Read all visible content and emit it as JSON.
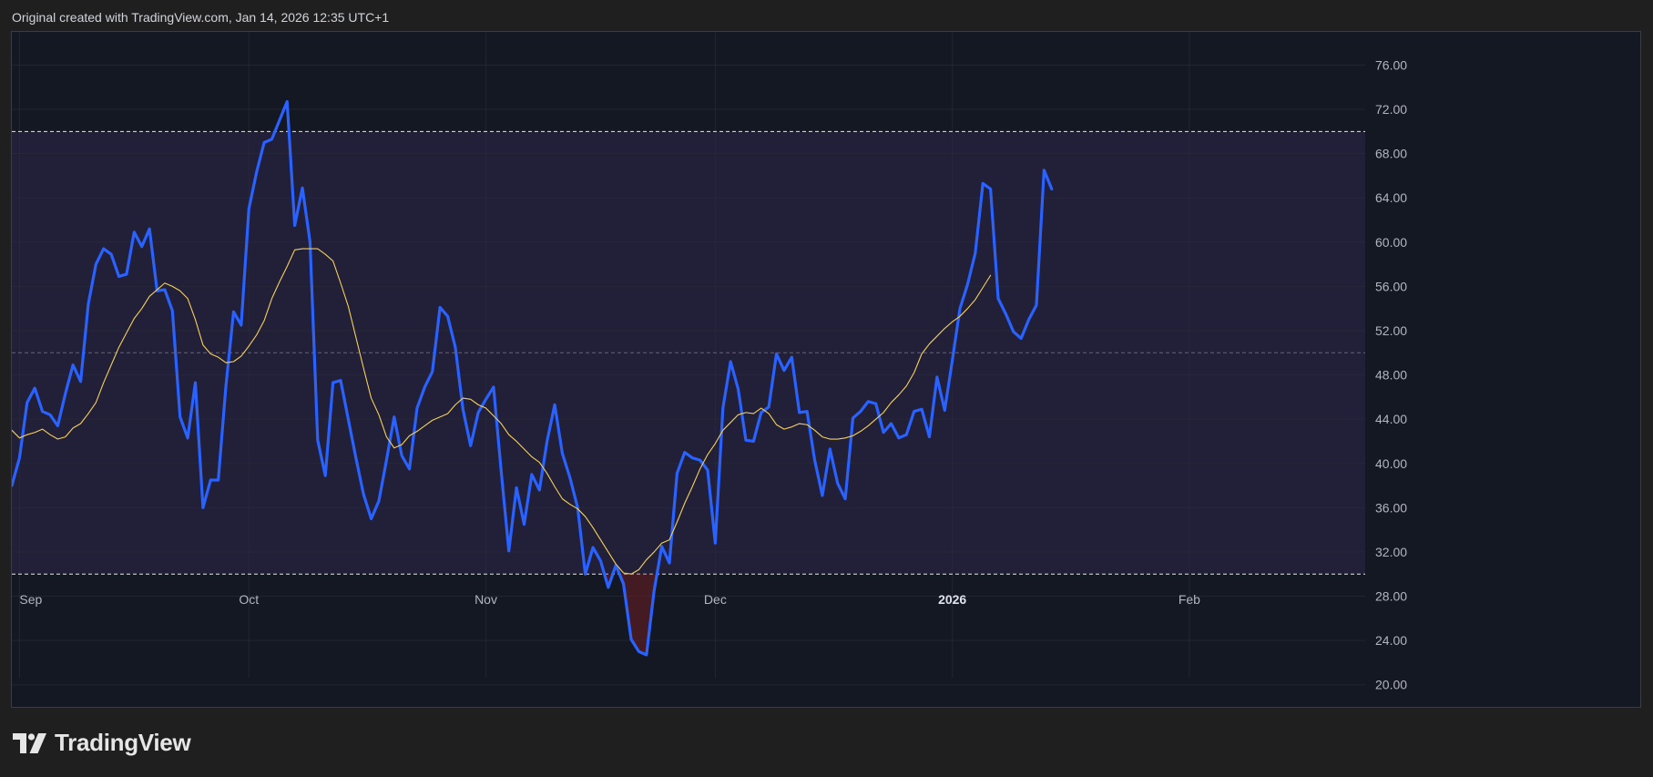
{
  "header": {
    "text": "Original created with TradingView.com, Jan 14, 2026 12:35 UTC+1"
  },
  "brand": {
    "name": "TradingView",
    "icon": "tradingview-logo-icon"
  },
  "colors": {
    "background": "#1f1f1f",
    "pane": "#141823",
    "band_fill": "#221f38",
    "rsi_line": "#2962ff",
    "ma_line": "#f5d15a",
    "level_line": "#e8e8e8",
    "oversold_fill": "#6b1f24",
    "axis_text": "#b2b5be"
  },
  "chart_data": {
    "type": "line",
    "title": "",
    "xlabel": "",
    "ylabel": "",
    "ylim": [
      18,
      79
    ],
    "y_ticks": [
      "76.00",
      "72.00",
      "68.00",
      "64.00",
      "60.00",
      "56.00",
      "52.00",
      "48.00",
      "44.00",
      "40.00",
      "36.00",
      "32.00",
      "28.00",
      "24.00",
      "20.00"
    ],
    "y_tick_values": [
      76,
      72,
      68,
      64,
      60,
      56,
      52,
      48,
      44,
      40,
      36,
      32,
      28,
      24,
      20
    ],
    "x_range": [
      "2025-08-31",
      "2026-02-24"
    ],
    "x_ticks": [
      {
        "label": "Sep",
        "date": "2025-09-01",
        "bold": false
      },
      {
        "label": "Oct",
        "date": "2025-10-01",
        "bold": false
      },
      {
        "label": "Nov",
        "date": "2025-11-01",
        "bold": false
      },
      {
        "label": "Dec",
        "date": "2025-12-01",
        "bold": false
      },
      {
        "label": "2026",
        "date": "2026-01-01",
        "bold": true
      },
      {
        "label": "Feb",
        "date": "2026-02-01",
        "bold": false
      }
    ],
    "levels": {
      "upper": 70,
      "middle": 50,
      "lower": 30
    },
    "grid": true,
    "series": [
      {
        "values": [
          [
            "2025-08-31",
            38.0
          ],
          [
            "2025-09-01",
            40.5
          ],
          [
            "2025-09-02",
            45.5
          ],
          [
            "2025-09-03",
            46.8
          ],
          [
            "2025-09-04",
            44.7
          ],
          [
            "2025-09-05",
            44.4
          ],
          [
            "2025-09-06",
            43.4
          ],
          [
            "2025-09-07",
            46.3
          ],
          [
            "2025-09-08",
            48.9
          ],
          [
            "2025-09-09",
            47.4
          ],
          [
            "2025-09-10",
            54.4
          ],
          [
            "2025-09-11",
            58.0
          ],
          [
            "2025-09-12",
            59.4
          ],
          [
            "2025-09-13",
            58.9
          ],
          [
            "2025-09-14",
            56.9
          ],
          [
            "2025-09-15",
            57.1
          ],
          [
            "2025-09-16",
            60.9
          ],
          [
            "2025-09-17",
            59.6
          ],
          [
            "2025-09-18",
            61.2
          ],
          [
            "2025-09-19",
            55.6
          ],
          [
            "2025-09-20",
            55.7
          ],
          [
            "2025-09-21",
            53.8
          ],
          [
            "2025-09-22",
            44.2
          ],
          [
            "2025-09-23",
            42.3
          ],
          [
            "2025-09-24",
            47.3
          ],
          [
            "2025-09-25",
            36.0
          ],
          [
            "2025-09-26",
            38.5
          ],
          [
            "2025-09-27",
            38.5
          ],
          [
            "2025-09-28",
            47.0
          ],
          [
            "2025-09-29",
            53.7
          ],
          [
            "2025-09-30",
            52.5
          ],
          [
            "2025-10-01",
            63.0
          ],
          [
            "2025-10-02",
            66.3
          ],
          [
            "2025-10-03",
            69.0
          ],
          [
            "2025-10-04",
            69.3
          ],
          [
            "2025-10-05",
            71.0
          ],
          [
            "2025-10-06",
            72.7
          ],
          [
            "2025-10-07",
            61.5
          ],
          [
            "2025-10-08",
            64.9
          ],
          [
            "2025-10-09",
            60.0
          ],
          [
            "2025-10-10",
            42.1
          ],
          [
            "2025-10-11",
            38.9
          ],
          [
            "2025-10-12",
            47.3
          ],
          [
            "2025-10-13",
            47.5
          ],
          [
            "2025-10-14",
            44.0
          ],
          [
            "2025-10-15",
            40.5
          ],
          [
            "2025-10-16",
            37.2
          ],
          [
            "2025-10-17",
            35.0
          ],
          [
            "2025-10-18",
            36.6
          ],
          [
            "2025-10-19",
            40.3
          ],
          [
            "2025-10-20",
            44.2
          ],
          [
            "2025-10-21",
            40.7
          ],
          [
            "2025-10-22",
            39.5
          ],
          [
            "2025-10-23",
            45.0
          ],
          [
            "2025-10-24",
            46.9
          ],
          [
            "2025-10-25",
            48.3
          ],
          [
            "2025-10-26",
            54.1
          ],
          [
            "2025-10-27",
            53.3
          ],
          [
            "2025-10-28",
            50.5
          ],
          [
            "2025-10-29",
            44.9
          ],
          [
            "2025-10-30",
            41.6
          ],
          [
            "2025-10-31",
            44.6
          ],
          [
            "2025-11-01",
            45.8
          ],
          [
            "2025-11-02",
            46.9
          ],
          [
            "2025-11-03",
            39.3
          ],
          [
            "2025-11-04",
            32.1
          ],
          [
            "2025-11-05",
            37.8
          ],
          [
            "2025-11-06",
            34.5
          ],
          [
            "2025-11-07",
            39.0
          ],
          [
            "2025-11-08",
            37.6
          ],
          [
            "2025-11-09",
            42.0
          ],
          [
            "2025-11-10",
            45.3
          ],
          [
            "2025-11-11",
            40.9
          ],
          [
            "2025-11-12",
            38.7
          ],
          [
            "2025-11-13",
            36.0
          ],
          [
            "2025-11-14",
            30.0
          ],
          [
            "2025-11-15",
            32.4
          ],
          [
            "2025-11-16",
            31.2
          ],
          [
            "2025-11-17",
            28.8
          ],
          [
            "2025-11-18",
            30.8
          ],
          [
            "2025-11-19",
            29.1
          ],
          [
            "2025-11-20",
            24.1
          ],
          [
            "2025-11-21",
            23.0
          ],
          [
            "2025-11-22",
            22.7
          ],
          [
            "2025-11-23",
            28.5
          ],
          [
            "2025-11-24",
            32.5
          ],
          [
            "2025-11-25",
            31.0
          ],
          [
            "2025-11-26",
            39.1
          ],
          [
            "2025-11-27",
            41.0
          ],
          [
            "2025-11-28",
            40.5
          ],
          [
            "2025-11-29",
            40.3
          ],
          [
            "2025-11-30",
            39.4
          ],
          [
            "2025-12-01",
            32.8
          ],
          [
            "2025-12-02",
            45.0
          ],
          [
            "2025-12-03",
            49.2
          ],
          [
            "2025-12-04",
            46.7
          ],
          [
            "2025-12-05",
            42.1
          ],
          [
            "2025-12-06",
            42.0
          ],
          [
            "2025-12-07",
            44.6
          ],
          [
            "2025-12-08",
            45.1
          ],
          [
            "2025-12-09",
            49.9
          ],
          [
            "2025-12-10",
            48.4
          ],
          [
            "2025-12-11",
            49.6
          ],
          [
            "2025-12-12",
            44.6
          ],
          [
            "2025-12-13",
            44.7
          ],
          [
            "2025-12-14",
            40.3
          ],
          [
            "2025-12-15",
            37.1
          ],
          [
            "2025-12-16",
            41.3
          ],
          [
            "2025-12-17",
            38.2
          ],
          [
            "2025-12-18",
            36.8
          ],
          [
            "2025-12-19",
            44.1
          ],
          [
            "2025-12-20",
            44.7
          ],
          [
            "2025-12-21",
            45.6
          ],
          [
            "2025-12-22",
            45.4
          ],
          [
            "2025-12-23",
            42.8
          ],
          [
            "2025-12-24",
            43.6
          ],
          [
            "2025-12-25",
            42.3
          ],
          [
            "2025-12-26",
            42.6
          ],
          [
            "2025-12-27",
            44.7
          ],
          [
            "2025-12-28",
            44.9
          ],
          [
            "2025-12-29",
            42.4
          ],
          [
            "2025-12-30",
            47.8
          ],
          [
            "2025-12-31",
            44.8
          ],
          [
            "2026-01-01",
            49.3
          ],
          [
            "2026-01-02",
            54.0
          ],
          [
            "2026-01-03",
            56.2
          ],
          [
            "2026-01-04",
            59.0
          ],
          [
            "2026-01-05",
            65.3
          ],
          [
            "2026-01-06",
            64.8
          ],
          [
            "2026-01-07",
            54.9
          ],
          [
            "2026-01-08",
            53.5
          ],
          [
            "2026-01-09",
            51.9
          ],
          [
            "2026-01-10",
            51.3
          ],
          [
            "2026-01-11",
            53.0
          ],
          [
            "2026-01-12",
            54.3
          ],
          [
            "2026-01-13",
            66.5
          ],
          [
            "2026-01-14",
            64.8
          ]
        ]
      },
      {
        "values": [
          [
            "2025-08-31",
            43.0
          ],
          [
            "2025-09-01",
            42.3
          ],
          [
            "2025-09-02",
            42.6
          ],
          [
            "2025-09-03",
            42.8
          ],
          [
            "2025-09-04",
            43.1
          ],
          [
            "2025-09-05",
            42.6
          ],
          [
            "2025-09-06",
            42.2
          ],
          [
            "2025-09-07",
            42.4
          ],
          [
            "2025-09-08",
            43.2
          ],
          [
            "2025-09-09",
            43.6
          ],
          [
            "2025-09-10",
            44.5
          ],
          [
            "2025-09-11",
            45.5
          ],
          [
            "2025-09-12",
            47.3
          ],
          [
            "2025-09-13",
            48.9
          ],
          [
            "2025-09-14",
            50.5
          ],
          [
            "2025-09-15",
            51.8
          ],
          [
            "2025-09-16",
            53.1
          ],
          [
            "2025-09-17",
            54.0
          ],
          [
            "2025-09-18",
            55.1
          ],
          [
            "2025-09-19",
            55.7
          ],
          [
            "2025-09-20",
            56.3
          ],
          [
            "2025-09-21",
            56.0
          ],
          [
            "2025-09-22",
            55.6
          ],
          [
            "2025-09-23",
            54.9
          ],
          [
            "2025-09-24",
            53.0
          ],
          [
            "2025-09-25",
            50.7
          ],
          [
            "2025-09-26",
            49.9
          ],
          [
            "2025-09-27",
            49.6
          ],
          [
            "2025-09-28",
            49.1
          ],
          [
            "2025-09-29",
            49.2
          ],
          [
            "2025-09-30",
            49.7
          ],
          [
            "2025-10-01",
            50.6
          ],
          [
            "2025-10-02",
            51.6
          ],
          [
            "2025-10-03",
            52.9
          ],
          [
            "2025-10-04",
            54.9
          ],
          [
            "2025-10-05",
            56.4
          ],
          [
            "2025-10-06",
            57.8
          ],
          [
            "2025-10-07",
            59.3
          ],
          [
            "2025-10-08",
            59.4
          ],
          [
            "2025-10-09",
            59.4
          ],
          [
            "2025-10-10",
            59.4
          ],
          [
            "2025-10-11",
            58.9
          ],
          [
            "2025-10-12",
            58.3
          ],
          [
            "2025-10-13",
            56.3
          ],
          [
            "2025-10-14",
            54.2
          ],
          [
            "2025-10-15",
            51.4
          ],
          [
            "2025-10-16",
            48.6
          ],
          [
            "2025-10-17",
            45.9
          ],
          [
            "2025-10-18",
            44.4
          ],
          [
            "2025-10-19",
            42.4
          ],
          [
            "2025-10-20",
            41.4
          ],
          [
            "2025-10-21",
            41.7
          ],
          [
            "2025-10-22",
            42.5
          ],
          [
            "2025-10-23",
            42.9
          ],
          [
            "2025-10-24",
            43.4
          ],
          [
            "2025-10-25",
            43.9
          ],
          [
            "2025-10-26",
            44.2
          ],
          [
            "2025-10-27",
            44.5
          ],
          [
            "2025-10-28",
            45.3
          ],
          [
            "2025-10-29",
            45.9
          ],
          [
            "2025-10-30",
            45.8
          ],
          [
            "2025-10-31",
            45.3
          ],
          [
            "2025-11-01",
            45.0
          ],
          [
            "2025-11-02",
            44.3
          ],
          [
            "2025-11-03",
            43.6
          ],
          [
            "2025-11-04",
            42.6
          ],
          [
            "2025-11-05",
            42.0
          ],
          [
            "2025-11-06",
            41.3
          ],
          [
            "2025-11-07",
            40.6
          ],
          [
            "2025-11-08",
            40.1
          ],
          [
            "2025-11-09",
            39.1
          ],
          [
            "2025-11-10",
            37.9
          ],
          [
            "2025-11-11",
            36.8
          ],
          [
            "2025-11-12",
            36.3
          ],
          [
            "2025-11-13",
            35.9
          ],
          [
            "2025-11-14",
            35.2
          ],
          [
            "2025-11-15",
            34.2
          ],
          [
            "2025-11-16",
            33.1
          ],
          [
            "2025-11-17",
            32.0
          ],
          [
            "2025-11-18",
            30.9
          ],
          [
            "2025-11-19",
            30.1
          ],
          [
            "2025-11-20",
            30.0
          ],
          [
            "2025-11-21",
            30.4
          ],
          [
            "2025-11-22",
            31.3
          ],
          [
            "2025-11-23",
            32.0
          ],
          [
            "2025-11-24",
            32.8
          ],
          [
            "2025-11-25",
            33.1
          ],
          [
            "2025-11-26",
            34.7
          ],
          [
            "2025-11-27",
            36.4
          ],
          [
            "2025-11-28",
            37.9
          ],
          [
            "2025-11-29",
            39.5
          ],
          [
            "2025-11-30",
            40.8
          ],
          [
            "2025-12-01",
            41.8
          ],
          [
            "2025-12-02",
            43.0
          ],
          [
            "2025-12-03",
            43.7
          ],
          [
            "2025-12-04",
            44.4
          ],
          [
            "2025-12-05",
            44.6
          ],
          [
            "2025-12-06",
            44.5
          ],
          [
            "2025-12-07",
            45.0
          ],
          [
            "2025-12-08",
            44.5
          ],
          [
            "2025-12-09",
            43.5
          ],
          [
            "2025-12-10",
            43.1
          ],
          [
            "2025-12-11",
            43.3
          ],
          [
            "2025-12-12",
            43.6
          ],
          [
            "2025-12-13",
            43.5
          ],
          [
            "2025-12-14",
            43.0
          ],
          [
            "2025-12-15",
            42.4
          ],
          [
            "2025-12-16",
            42.2
          ],
          [
            "2025-12-17",
            42.2
          ],
          [
            "2025-12-18",
            42.3
          ],
          [
            "2025-12-19",
            42.5
          ],
          [
            "2025-12-20",
            42.9
          ],
          [
            "2025-12-21",
            43.4
          ],
          [
            "2025-12-22",
            44.0
          ],
          [
            "2025-12-23",
            44.6
          ],
          [
            "2025-12-24",
            45.5
          ],
          [
            "2025-12-25",
            46.2
          ],
          [
            "2025-12-26",
            47.0
          ],
          [
            "2025-12-27",
            48.2
          ],
          [
            "2025-12-28",
            49.9
          ],
          [
            "2025-12-29",
            50.8
          ],
          [
            "2025-12-30",
            51.5
          ],
          [
            "2025-12-31",
            52.2
          ],
          [
            "2026-01-01",
            52.8
          ],
          [
            "2026-01-02",
            53.3
          ],
          [
            "2026-01-03",
            54.0
          ],
          [
            "2026-01-04",
            54.8
          ],
          [
            "2026-01-05",
            55.9
          ],
          [
            "2026-01-06",
            57.0
          ]
        ]
      }
    ]
  }
}
